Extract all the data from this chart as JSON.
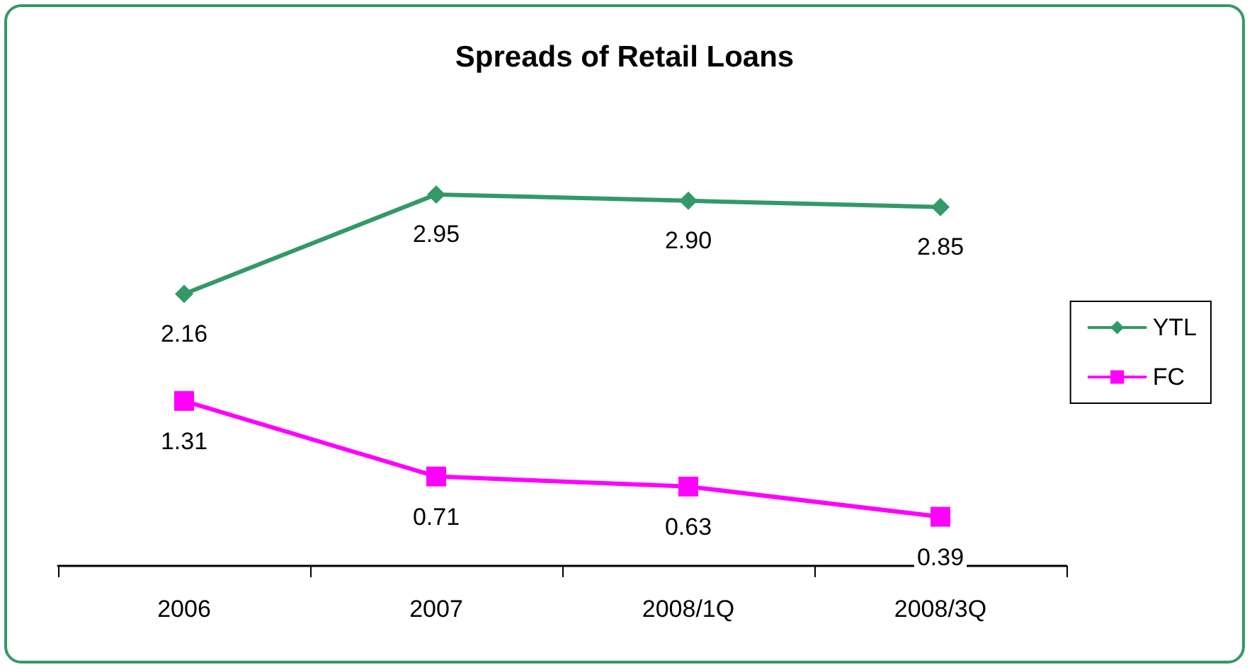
{
  "chart_data": {
    "type": "line",
    "title": "Spreads of Retail Loans",
    "categories": [
      "2006",
      "2007",
      "2008/1Q",
      "2008/3Q"
    ],
    "series": [
      {
        "name": "YTL",
        "color": "#339966",
        "marker": "diamond",
        "values": [
          2.16,
          2.95,
          2.9,
          2.85
        ],
        "value_labels": [
          "2.16",
          "2.95",
          "2.90",
          "2.85"
        ]
      },
      {
        "name": "FC",
        "color": "#ff00ff",
        "marker": "square",
        "values": [
          1.31,
          0.71,
          0.63,
          0.39
        ],
        "value_labels": [
          "1.31",
          "0.71",
          "0.63",
          "0.39"
        ]
      }
    ],
    "tick_labels": "x",
    "grid": false,
    "legend": "right",
    "line_style": "solid"
  }
}
